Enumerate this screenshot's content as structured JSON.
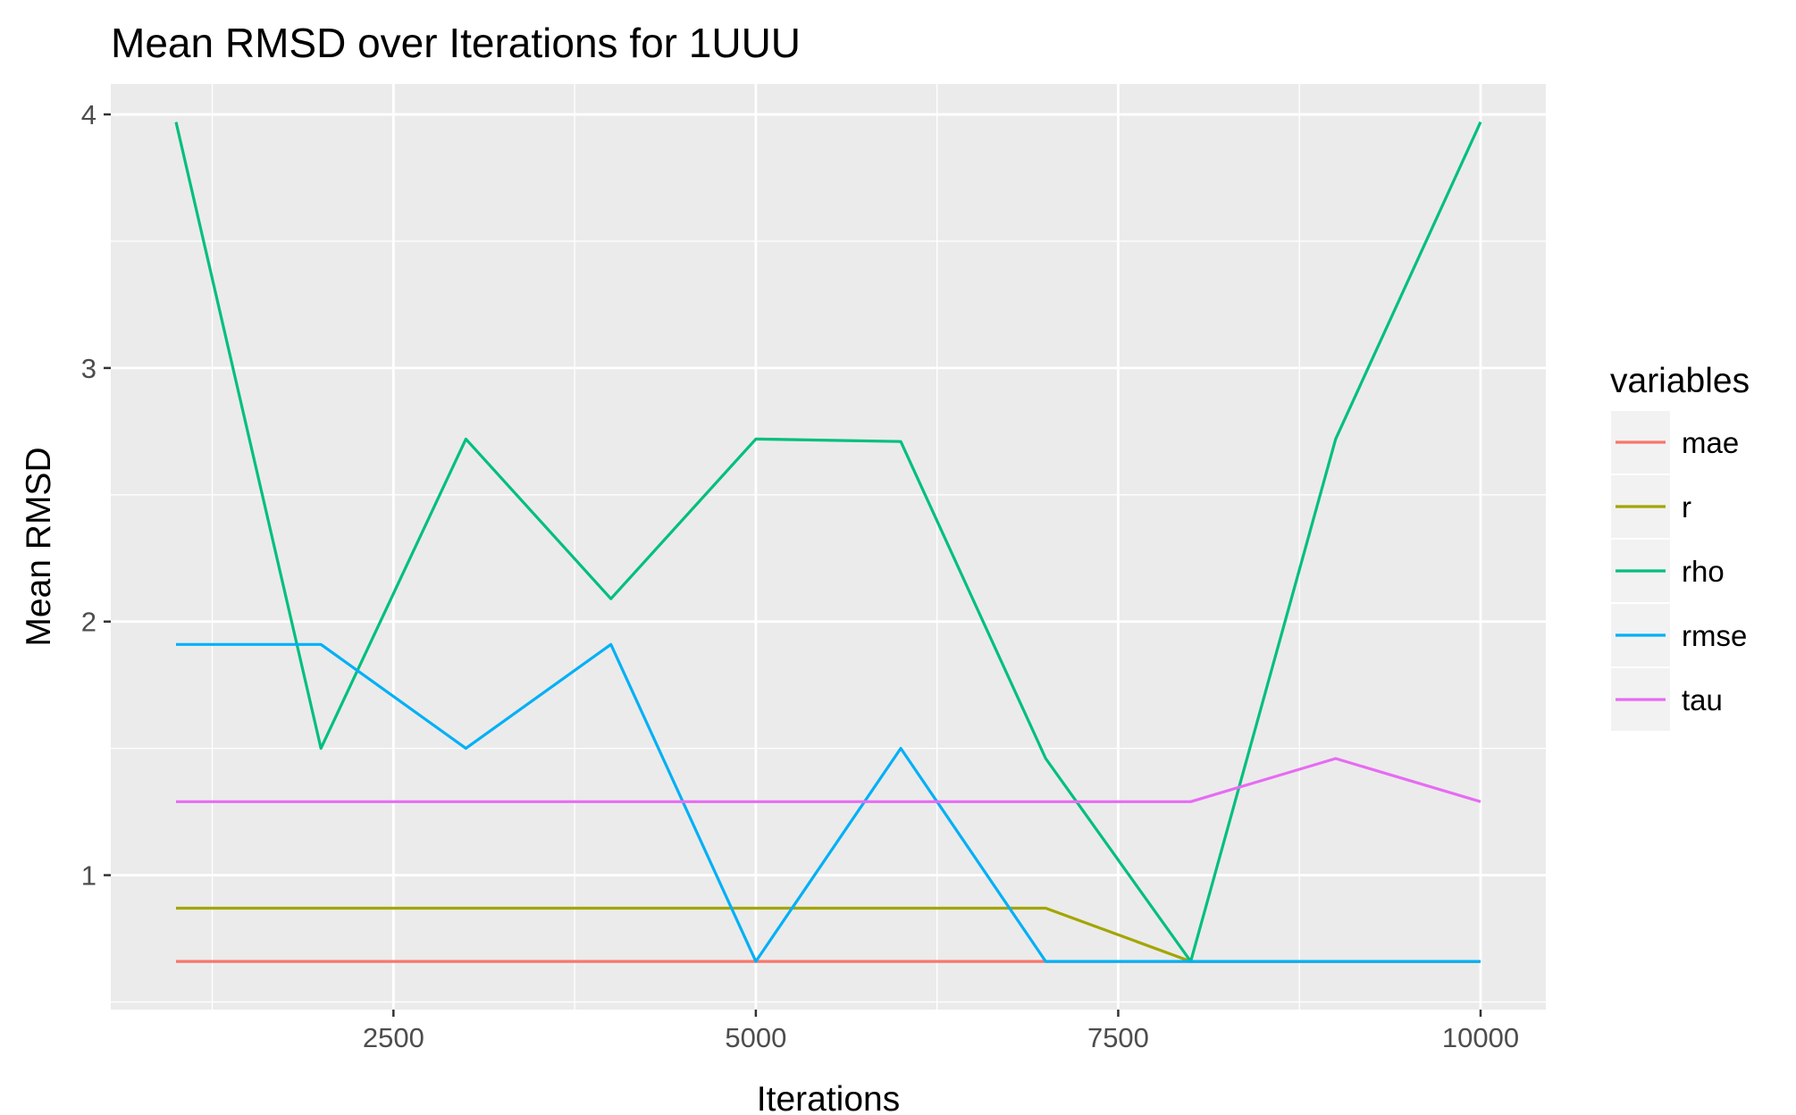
{
  "chart_data": {
    "type": "line",
    "title": "Mean RMSD over Iterations for 1UUU",
    "xlabel": "Iterations",
    "ylabel": "Mean RMSD",
    "x": [
      1000,
      2000,
      3000,
      4000,
      5000,
      6000,
      7000,
      8000,
      9000,
      10000
    ],
    "xlim": [
      550,
      10450
    ],
    "ylim": [
      0.47,
      4.12
    ],
    "xticks": [
      2500,
      5000,
      7500,
      10000
    ],
    "xtick_labels": [
      "2500",
      "5000",
      "7500",
      "10000"
    ],
    "yticks": [
      1,
      2,
      3,
      4
    ],
    "ytick_labels": [
      "1",
      "2",
      "3",
      "4"
    ],
    "grid": true,
    "legend": {
      "title": "variables",
      "position": "right"
    },
    "series": [
      {
        "name": "mae",
        "color": "#F8766D",
        "values": [
          0.66,
          0.66,
          0.66,
          0.66,
          0.66,
          0.66,
          0.66,
          0.66,
          0.66,
          0.66
        ]
      },
      {
        "name": "r",
        "color": "#A3A500",
        "values": [
          0.87,
          0.87,
          0.87,
          0.87,
          0.87,
          0.87,
          0.87,
          0.66,
          0.66,
          0.66
        ]
      },
      {
        "name": "rho",
        "color": "#00BF7D",
        "values": [
          3.97,
          1.5,
          2.72,
          2.09,
          2.72,
          2.71,
          1.46,
          0.66,
          2.72,
          3.97
        ]
      },
      {
        "name": "rmse",
        "color": "#00B0F6",
        "values": [
          1.91,
          1.91,
          1.5,
          1.91,
          0.66,
          1.5,
          0.66,
          0.66,
          0.66,
          0.66
        ]
      },
      {
        "name": "tau",
        "color": "#E76BF3",
        "values": [
          1.29,
          1.29,
          1.29,
          1.29,
          1.29,
          1.29,
          1.29,
          1.29,
          1.46,
          1.29
        ]
      }
    ]
  }
}
